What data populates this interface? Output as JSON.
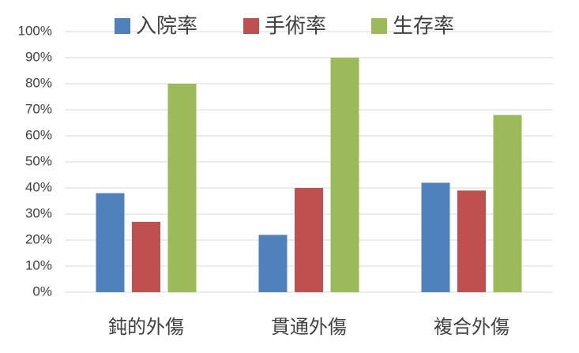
{
  "chart_data": {
    "type": "bar",
    "categories": [
      "鈍的外傷",
      "貫通外傷",
      "複合外傷"
    ],
    "series": [
      {
        "name": "入院率",
        "color": "#4f81bd",
        "values": [
          38,
          22,
          42
        ]
      },
      {
        "name": "手術率",
        "color": "#c0504d",
        "values": [
          27,
          40,
          39
        ]
      },
      {
        "name": "生存率",
        "color": "#9bbb59",
        "values": [
          80,
          90,
          68
        ]
      }
    ],
    "ylim": [
      0,
      100
    ],
    "yticks": [
      {
        "value": 0,
        "label": "0%"
      },
      {
        "value": 10,
        "label": "10%"
      },
      {
        "value": 20,
        "label": "20%"
      },
      {
        "value": 30,
        "label": "30%"
      },
      {
        "value": 40,
        "label": "40%"
      },
      {
        "value": 50,
        "label": "50%"
      },
      {
        "value": 60,
        "label": "60%"
      },
      {
        "value": 70,
        "label": "70%"
      },
      {
        "value": 80,
        "label": "80%"
      },
      {
        "value": 90,
        "label": "90%"
      },
      {
        "value": 100,
        "label": "100%"
      }
    ],
    "grid": true,
    "legend": "top"
  }
}
